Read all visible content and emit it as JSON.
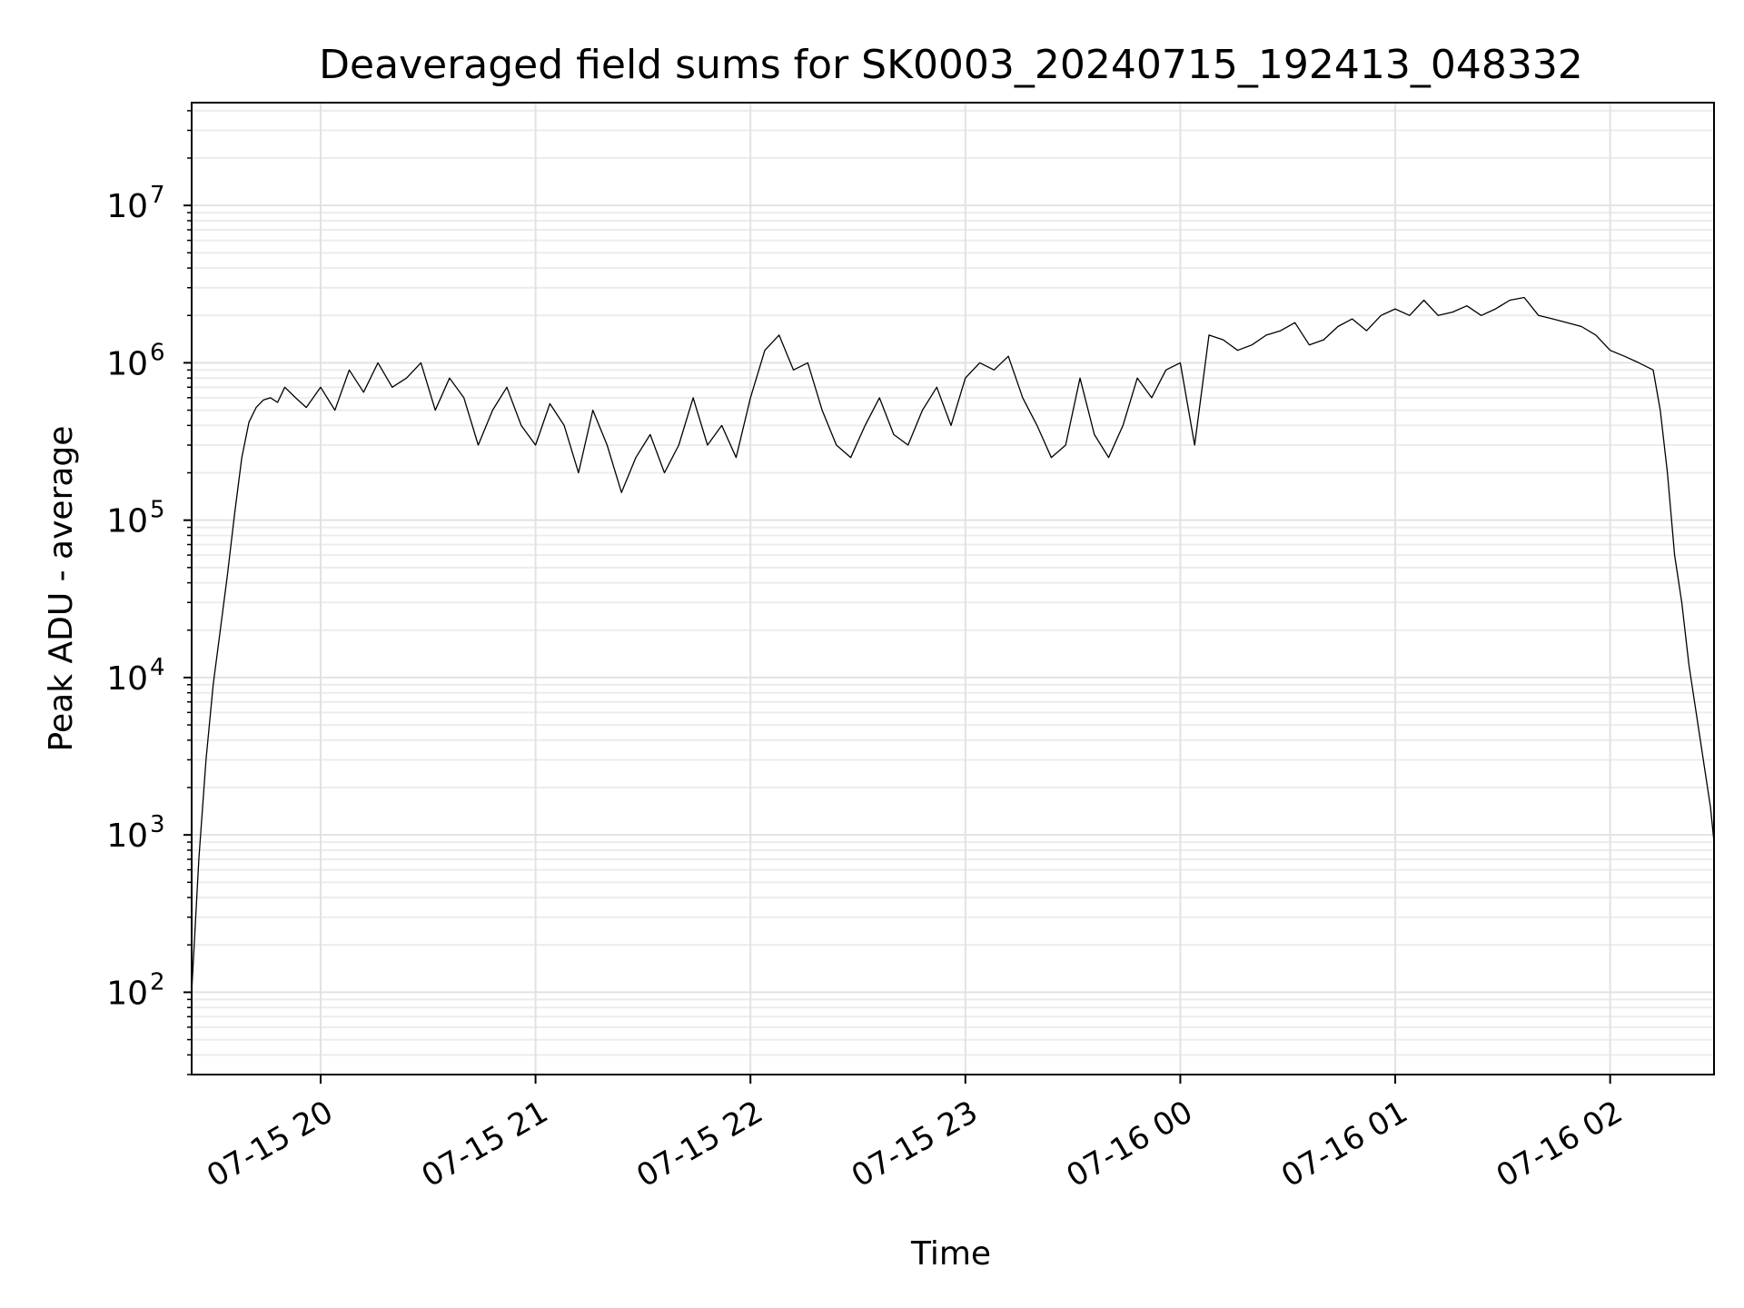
{
  "chart_data": {
    "type": "line",
    "title": "Deaveraged field sums for SK0003_20240715_192413_048332",
    "xlabel": "Time",
    "ylabel": "Peak ADU - average",
    "y_scale": "log",
    "ylim": [
      30,
      45000000
    ],
    "xlim": [
      "2024-07-15 19:24",
      "2024-07-16 02:29"
    ],
    "grid": true,
    "line_color": "#000000",
    "x_ticks": [
      {
        "value": "2024-07-15 20:00",
        "label": "07-15 20"
      },
      {
        "value": "2024-07-15 21:00",
        "label": "07-15 21"
      },
      {
        "value": "2024-07-15 22:00",
        "label": "07-15 22"
      },
      {
        "value": "2024-07-15 23:00",
        "label": "07-15 23"
      },
      {
        "value": "2024-07-16 00:00",
        "label": "07-16 00"
      },
      {
        "value": "2024-07-16 01:00",
        "label": "07-16 01"
      },
      {
        "value": "2024-07-16 02:00",
        "label": "07-16 02"
      }
    ],
    "y_ticks": [
      {
        "value": 100,
        "base": "10",
        "exp": "2"
      },
      {
        "value": 1000,
        "base": "10",
        "exp": "3"
      },
      {
        "value": 10000,
        "base": "10",
        "exp": "4"
      },
      {
        "value": 100000,
        "base": "10",
        "exp": "5"
      },
      {
        "value": 1000000,
        "base": "10",
        "exp": "6"
      },
      {
        "value": 10000000,
        "base": "10",
        "exp": "7"
      }
    ],
    "series": [
      {
        "x": [
          "2024-07-15 19:24",
          "2024-07-15 19:26",
          "2024-07-15 19:28",
          "2024-07-15 19:30",
          "2024-07-15 19:32",
          "2024-07-15 19:34",
          "2024-07-15 19:36",
          "2024-07-15 19:38",
          "2024-07-15 19:40",
          "2024-07-15 19:42",
          "2024-07-15 19:44",
          "2024-07-15 19:46",
          "2024-07-15 19:48",
          "2024-07-15 19:50",
          "2024-07-15 19:53",
          "2024-07-15 19:56",
          "2024-07-15 20:00",
          "2024-07-15 20:04",
          "2024-07-15 20:08",
          "2024-07-15 20:12",
          "2024-07-15 20:16",
          "2024-07-15 20:20",
          "2024-07-15 20:24",
          "2024-07-15 20:28",
          "2024-07-15 20:32",
          "2024-07-15 20:36",
          "2024-07-15 20:40",
          "2024-07-15 20:44",
          "2024-07-15 20:48",
          "2024-07-15 20:52",
          "2024-07-15 20:56",
          "2024-07-15 21:00",
          "2024-07-15 21:04",
          "2024-07-15 21:08",
          "2024-07-15 21:12",
          "2024-07-15 21:16",
          "2024-07-15 21:20",
          "2024-07-15 21:24",
          "2024-07-15 21:28",
          "2024-07-15 21:32",
          "2024-07-15 21:36",
          "2024-07-15 21:40",
          "2024-07-15 21:44",
          "2024-07-15 21:48",
          "2024-07-15 21:52",
          "2024-07-15 21:56",
          "2024-07-15 22:00",
          "2024-07-15 22:04",
          "2024-07-15 22:08",
          "2024-07-15 22:12",
          "2024-07-15 22:16",
          "2024-07-15 22:20",
          "2024-07-15 22:24",
          "2024-07-15 22:28",
          "2024-07-15 22:32",
          "2024-07-15 22:36",
          "2024-07-15 22:40",
          "2024-07-15 22:44",
          "2024-07-15 22:48",
          "2024-07-15 22:52",
          "2024-07-15 22:56",
          "2024-07-15 23:00",
          "2024-07-15 23:04",
          "2024-07-15 23:08",
          "2024-07-15 23:12",
          "2024-07-15 23:16",
          "2024-07-15 23:20",
          "2024-07-15 23:24",
          "2024-07-15 23:28",
          "2024-07-15 23:32",
          "2024-07-15 23:36",
          "2024-07-15 23:40",
          "2024-07-15 23:44",
          "2024-07-15 23:48",
          "2024-07-15 23:52",
          "2024-07-15 23:56",
          "2024-07-16 00:00",
          "2024-07-16 00:04",
          "2024-07-16 00:08",
          "2024-07-16 00:12",
          "2024-07-16 00:16",
          "2024-07-16 00:20",
          "2024-07-16 00:24",
          "2024-07-16 00:28",
          "2024-07-16 00:32",
          "2024-07-16 00:36",
          "2024-07-16 00:40",
          "2024-07-16 00:44",
          "2024-07-16 00:48",
          "2024-07-16 00:52",
          "2024-07-16 00:56",
          "2024-07-16 01:00",
          "2024-07-16 01:04",
          "2024-07-16 01:08",
          "2024-07-16 01:12",
          "2024-07-16 01:16",
          "2024-07-16 01:20",
          "2024-07-16 01:24",
          "2024-07-16 01:28",
          "2024-07-16 01:32",
          "2024-07-16 01:36",
          "2024-07-16 01:40",
          "2024-07-16 01:44",
          "2024-07-16 01:48",
          "2024-07-16 01:52",
          "2024-07-16 01:56",
          "2024-07-16 02:00",
          "2024-07-16 02:04",
          "2024-07-16 02:08",
          "2024-07-16 02:12",
          "2024-07-16 02:14",
          "2024-07-16 02:16",
          "2024-07-16 02:18",
          "2024-07-16 02:20",
          "2024-07-16 02:22",
          "2024-07-16 02:24",
          "2024-07-16 02:26",
          "2024-07-16 02:28",
          "2024-07-16 02:29"
        ],
        "y": [
          100,
          700,
          3000,
          9000,
          20000,
          45000,
          110000,
          250000,
          420000,
          520000,
          580000,
          600000,
          560000,
          700000,
          600000,
          520000,
          700000,
          500000,
          900000,
          650000,
          1000000,
          700000,
          800000,
          1000000,
          500000,
          800000,
          600000,
          300000,
          500000,
          700000,
          400000,
          300000,
          550000,
          400000,
          200000,
          500000,
          300000,
          150000,
          250000,
          350000,
          200000,
          300000,
          600000,
          300000,
          400000,
          250000,
          600000,
          1200000,
          1500000,
          900000,
          1000000,
          500000,
          300000,
          250000,
          400000,
          600000,
          350000,
          300000,
          500000,
          700000,
          400000,
          800000,
          1000000,
          900000,
          1100000,
          600000,
          400000,
          250000,
          300000,
          800000,
          350000,
          250000,
          400000,
          800000,
          600000,
          900000,
          1000000,
          300000,
          1500000,
          1400000,
          1200000,
          1300000,
          1500000,
          1600000,
          1800000,
          1300000,
          1400000,
          1700000,
          1900000,
          1600000,
          2000000,
          2200000,
          2000000,
          2500000,
          2000000,
          2100000,
          2300000,
          2000000,
          2200000,
          2500000,
          2600000,
          2000000,
          1900000,
          1800000,
          1700000,
          1500000,
          1200000,
          1100000,
          1000000,
          900000,
          500000,
          200000,
          60000,
          30000,
          12000,
          6000,
          3000,
          1500,
          900
        ]
      }
    ]
  }
}
